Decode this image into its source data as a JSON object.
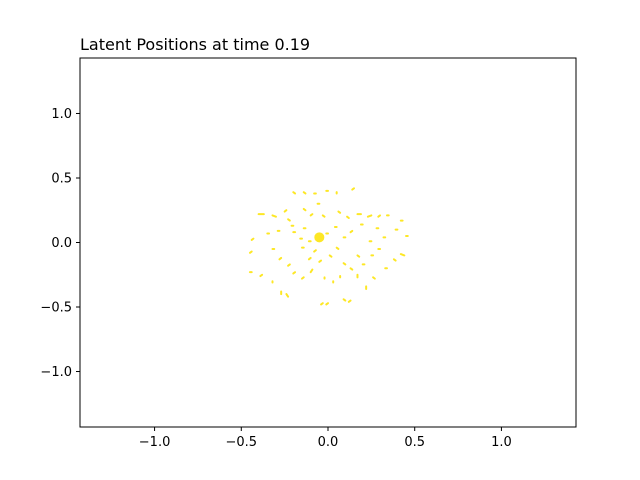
{
  "chart_data": {
    "type": "scatter",
    "title": "Latent Positions at time 0.19",
    "xlabel": "",
    "ylabel": "",
    "xlim": [
      -1.43,
      1.43
    ],
    "ylim": [
      -1.43,
      1.43
    ],
    "xticks": [
      -1.0,
      -0.5,
      0.0,
      0.5,
      1.0
    ],
    "xtick_labels": [
      "−1.0",
      "−0.5",
      "0.0",
      "0.5",
      "1.0"
    ],
    "yticks": [
      -1.0,
      -0.5,
      0.0,
      0.5,
      1.0
    ],
    "ytick_labels": [
      "−1.0",
      "−0.5",
      "0.0",
      "0.5",
      "1.0"
    ],
    "grid": false,
    "marker_color": "#fde725",
    "center_marker": {
      "x": -0.05,
      "y": 0.04,
      "size": "large"
    },
    "segments": [
      {
        "x": [
          -0.4,
          -0.37
        ],
        "y": [
          0.22,
          0.22
        ]
      },
      {
        "x": [
          -0.43,
          -0.44
        ],
        "y": [
          0.03,
          0.02
        ]
      },
      {
        "x": [
          -0.44,
          -0.45
        ],
        "y": [
          -0.07,
          -0.08
        ]
      },
      {
        "x": [
          -0.44,
          -0.45
        ],
        "y": [
          -0.23,
          -0.23
        ]
      },
      {
        "x": [
          -0.38,
          -0.39
        ],
        "y": [
          -0.25,
          -0.26
        ]
      },
      {
        "x": [
          -0.32,
          -0.32
        ],
        "y": [
          -0.3,
          -0.31
        ]
      },
      {
        "x": [
          -0.27,
          -0.27
        ],
        "y": [
          -0.38,
          -0.4
        ]
      },
      {
        "x": [
          -0.24,
          -0.23
        ],
        "y": [
          -0.4,
          -0.42
        ]
      },
      {
        "x": [
          -0.2,
          -0.19
        ],
        "y": [
          0.39,
          0.38
        ]
      },
      {
        "x": [
          -0.14,
          -0.13
        ],
        "y": [
          0.39,
          0.38
        ]
      },
      {
        "x": [
          -0.08,
          -0.07
        ],
        "y": [
          0.38,
          0.38
        ]
      },
      {
        "x": [
          -0.01,
          0.0
        ],
        "y": [
          0.4,
          0.4
        ]
      },
      {
        "x": [
          0.05,
          0.05
        ],
        "y": [
          0.39,
          0.38
        ]
      },
      {
        "x": [
          0.14,
          0.15
        ],
        "y": [
          0.41,
          0.42
        ]
      },
      {
        "x": [
          0.17,
          0.19
        ],
        "y": [
          0.22,
          0.22
        ]
      },
      {
        "x": [
          0.23,
          0.25
        ],
        "y": [
          0.2,
          0.21
        ]
      },
      {
        "x": [
          0.29,
          0.3
        ],
        "y": [
          0.2,
          0.21
        ]
      },
      {
        "x": [
          0.34,
          0.35
        ],
        "y": [
          0.21,
          0.21
        ]
      },
      {
        "x": [
          0.42,
          0.43
        ],
        "y": [
          0.17,
          0.17
        ]
      },
      {
        "x": [
          0.39,
          0.4
        ],
        "y": [
          0.1,
          0.1
        ]
      },
      {
        "x": [
          0.45,
          0.46
        ],
        "y": [
          0.05,
          0.05
        ]
      },
      {
        "x": [
          0.42,
          0.44
        ],
        "y": [
          -0.09,
          -0.1
        ]
      },
      {
        "x": [
          0.38,
          0.39
        ],
        "y": [
          -0.13,
          -0.14
        ]
      },
      {
        "x": [
          0.33,
          0.34
        ],
        "y": [
          -0.2,
          -0.2
        ]
      },
      {
        "x": [
          0.26,
          0.27
        ],
        "y": [
          -0.27,
          -0.28
        ]
      },
      {
        "x": [
          0.22,
          0.22
        ],
        "y": [
          -0.34,
          -0.36
        ]
      },
      {
        "x": [
          0.13,
          0.12
        ],
        "y": [
          -0.45,
          -0.46
        ]
      },
      {
        "x": [
          0.09,
          0.1
        ],
        "y": [
          -0.44,
          -0.45
        ]
      },
      {
        "x": [
          0.0,
          -0.01
        ],
        "y": [
          -0.47,
          -0.48
        ]
      },
      {
        "x": [
          -0.03,
          -0.04
        ],
        "y": [
          -0.47,
          -0.48
        ]
      },
      {
        "x": [
          -0.32,
          -0.3
        ],
        "y": [
          0.21,
          0.2
        ]
      },
      {
        "x": [
          -0.25,
          -0.24
        ],
        "y": [
          0.24,
          0.25
        ]
      },
      {
        "x": [
          -0.23,
          -0.22
        ],
        "y": [
          0.18,
          0.17
        ]
      },
      {
        "x": [
          -0.14,
          -0.13
        ],
        "y": [
          0.26,
          0.25
        ]
      },
      {
        "x": [
          -0.1,
          -0.09
        ],
        "y": [
          0.21,
          0.22
        ]
      },
      {
        "x": [
          -0.06,
          -0.05
        ],
        "y": [
          0.3,
          0.3
        ]
      },
      {
        "x": [
          -0.03,
          -0.02
        ],
        "y": [
          0.21,
          0.2
        ]
      },
      {
        "x": [
          0.06,
          0.07
        ],
        "y": [
          0.24,
          0.23
        ]
      },
      {
        "x": [
          0.11,
          0.12
        ],
        "y": [
          0.2,
          0.19
        ]
      },
      {
        "x": [
          0.19,
          0.2
        ],
        "y": [
          0.14,
          0.14
        ]
      },
      {
        "x": [
          0.28,
          0.29
        ],
        "y": [
          0.11,
          0.11
        ]
      },
      {
        "x": [
          0.32,
          0.33
        ],
        "y": [
          0.04,
          0.04
        ]
      },
      {
        "x": [
          0.24,
          0.25
        ],
        "y": [
          0.01,
          0.01
        ]
      },
      {
        "x": [
          0.29,
          0.3
        ],
        "y": [
          -0.05,
          -0.05
        ]
      },
      {
        "x": [
          0.25,
          0.26
        ],
        "y": [
          -0.1,
          -0.1
        ]
      },
      {
        "x": [
          0.17,
          0.18
        ],
        "y": [
          -0.1,
          -0.11
        ]
      },
      {
        "x": [
          0.2,
          0.21
        ],
        "y": [
          -0.17,
          -0.17
        ]
      },
      {
        "x": [
          0.13,
          0.14
        ],
        "y": [
          -0.2,
          -0.21
        ]
      },
      {
        "x": [
          0.17,
          0.17
        ],
        "y": [
          -0.25,
          -0.27
        ]
      },
      {
        "x": [
          0.07,
          0.07
        ],
        "y": [
          -0.26,
          -0.27
        ]
      },
      {
        "x": [
          0.03,
          0.03
        ],
        "y": [
          -0.3,
          -0.31
        ]
      },
      {
        "x": [
          -0.02,
          -0.02
        ],
        "y": [
          -0.27,
          -0.28
        ]
      },
      {
        "x": [
          -0.09,
          -0.1
        ],
        "y": [
          -0.21,
          -0.23
        ]
      },
      {
        "x": [
          -0.14,
          -0.15
        ],
        "y": [
          -0.27,
          -0.28
        ]
      },
      {
        "x": [
          -0.19,
          -0.2
        ],
        "y": [
          -0.23,
          -0.24
        ]
      },
      {
        "x": [
          -0.22,
          -0.23
        ],
        "y": [
          -0.17,
          -0.18
        ]
      },
      {
        "x": [
          -0.27,
          -0.28
        ],
        "y": [
          -0.12,
          -0.13
        ]
      },
      {
        "x": [
          -0.31,
          -0.32
        ],
        "y": [
          -0.05,
          -0.05
        ]
      },
      {
        "x": [
          -0.34,
          -0.35
        ],
        "y": [
          0.07,
          0.07
        ]
      },
      {
        "x": [
          -0.28,
          -0.29
        ],
        "y": [
          0.09,
          0.09
        ]
      },
      {
        "x": [
          -0.19,
          -0.2
        ],
        "y": [
          0.08,
          0.08
        ]
      },
      {
        "x": [
          -0.13,
          -0.14
        ],
        "y": [
          0.11,
          0.11
        ]
      },
      {
        "x": [
          -0.15,
          -0.16
        ],
        "y": [
          0.03,
          0.03
        ]
      },
      {
        "x": [
          -0.1,
          -0.11
        ],
        "y": [
          0.01,
          0.01
        ]
      },
      {
        "x": [
          -0.14,
          -0.15
        ],
        "y": [
          -0.04,
          -0.04
        ]
      },
      {
        "x": [
          -0.07,
          -0.08
        ],
        "y": [
          -0.06,
          -0.07
        ]
      },
      {
        "x": [
          -0.1,
          -0.11
        ],
        "y": [
          -0.12,
          -0.13
        ]
      },
      {
        "x": [
          -0.04,
          -0.05
        ],
        "y": [
          -0.14,
          -0.15
        ]
      },
      {
        "x": [
          0.01,
          0.02
        ],
        "y": [
          -0.1,
          -0.11
        ]
      },
      {
        "x": [
          0.05,
          0.06
        ],
        "y": [
          -0.04,
          -0.05
        ]
      },
      {
        "x": [
          0.09,
          0.1
        ],
        "y": [
          0.04,
          0.04
        ]
      },
      {
        "x": [
          0.13,
          0.14
        ],
        "y": [
          0.08,
          0.09
        ]
      },
      {
        "x": [
          0.04,
          0.05
        ],
        "y": [
          0.12,
          0.12
        ]
      },
      {
        "x": [
          -0.01,
          0.0
        ],
        "y": [
          0.07,
          0.07
        ]
      },
      {
        "x": [
          -0.2,
          -0.21
        ],
        "y": [
          0.13,
          0.13
        ]
      },
      {
        "x": [
          0.09,
          0.1
        ],
        "y": [
          -0.16,
          -0.17
        ]
      }
    ]
  }
}
